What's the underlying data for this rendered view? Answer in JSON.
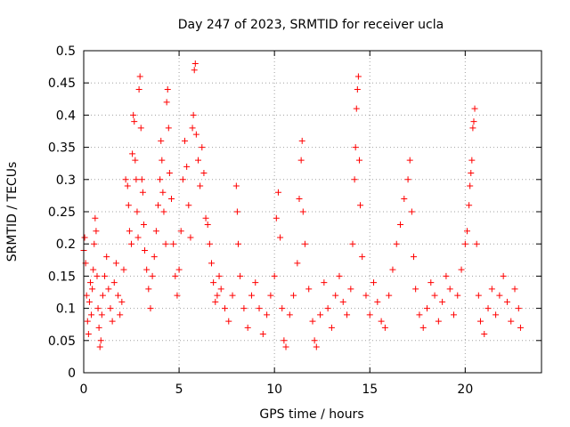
{
  "chart_data": {
    "type": "scatter",
    "title": "Day 247 of 2023, SRMTID for receiver ucla",
    "xlabel": "GPS time / hours",
    "ylabel": "SRMTID / TECUs",
    "xlim": [
      0,
      24
    ],
    "ylim": [
      0,
      0.5
    ],
    "xticks": [
      0,
      5,
      10,
      15,
      20
    ],
    "xtick_labels": [
      "0",
      "5",
      "10",
      "15",
      "20"
    ],
    "yticks": [
      0,
      0.05,
      0.1,
      0.15,
      0.2,
      0.25,
      0.3,
      0.35,
      0.4,
      0.45,
      0.5
    ],
    "ytick_labels": [
      "0",
      "0.05",
      "0.1",
      "0.15",
      "0.2",
      "0.25",
      "0.3",
      "0.35",
      "0.4",
      "0.45",
      "0.5"
    ],
    "grid": true,
    "marker": "+",
    "color": "#ff0000",
    "series": [
      {
        "name": "SRMTID",
        "points": [
          [
            0.0,
            0.19
          ],
          [
            0.05,
            0.21
          ],
          [
            0.1,
            0.17
          ],
          [
            0.15,
            0.12
          ],
          [
            0.2,
            0.08
          ],
          [
            0.25,
            0.06
          ],
          [
            0.3,
            0.11
          ],
          [
            0.35,
            0.14
          ],
          [
            0.4,
            0.09
          ],
          [
            0.45,
            0.13
          ],
          [
            0.5,
            0.16
          ],
          [
            0.55,
            0.2
          ],
          [
            0.6,
            0.24
          ],
          [
            0.65,
            0.22
          ],
          [
            0.7,
            0.15
          ],
          [
            0.75,
            0.1
          ],
          [
            0.8,
            0.07
          ],
          [
            0.85,
            0.04
          ],
          [
            0.9,
            0.05
          ],
          [
            0.95,
            0.09
          ],
          [
            1.0,
            0.12
          ],
          [
            1.1,
            0.15
          ],
          [
            1.2,
            0.18
          ],
          [
            1.3,
            0.13
          ],
          [
            1.4,
            0.1
          ],
          [
            1.5,
            0.08
          ],
          [
            1.6,
            0.14
          ],
          [
            1.7,
            0.17
          ],
          [
            1.8,
            0.12
          ],
          [
            1.9,
            0.09
          ],
          [
            2.0,
            0.11
          ],
          [
            2.1,
            0.16
          ],
          [
            2.2,
            0.3
          ],
          [
            2.3,
            0.29
          ],
          [
            2.35,
            0.26
          ],
          [
            2.4,
            0.22
          ],
          [
            2.5,
            0.2
          ],
          [
            2.55,
            0.34
          ],
          [
            2.6,
            0.4
          ],
          [
            2.65,
            0.39
          ],
          [
            2.7,
            0.33
          ],
          [
            2.75,
            0.3
          ],
          [
            2.8,
            0.25
          ],
          [
            2.85,
            0.21
          ],
          [
            2.9,
            0.44
          ],
          [
            2.95,
            0.46
          ],
          [
            3.0,
            0.38
          ],
          [
            3.05,
            0.3
          ],
          [
            3.1,
            0.28
          ],
          [
            3.15,
            0.23
          ],
          [
            3.2,
            0.19
          ],
          [
            3.3,
            0.16
          ],
          [
            3.4,
            0.13
          ],
          [
            3.5,
            0.1
          ],
          [
            3.6,
            0.15
          ],
          [
            3.7,
            0.18
          ],
          [
            3.8,
            0.22
          ],
          [
            3.9,
            0.26
          ],
          [
            4.0,
            0.3
          ],
          [
            4.05,
            0.36
          ],
          [
            4.1,
            0.33
          ],
          [
            4.15,
            0.28
          ],
          [
            4.2,
            0.25
          ],
          [
            4.3,
            0.2
          ],
          [
            4.35,
            0.42
          ],
          [
            4.4,
            0.44
          ],
          [
            4.45,
            0.38
          ],
          [
            4.5,
            0.31
          ],
          [
            4.6,
            0.27
          ],
          [
            4.7,
            0.2
          ],
          [
            4.8,
            0.15
          ],
          [
            4.9,
            0.12
          ],
          [
            5.0,
            0.16
          ],
          [
            5.1,
            0.22
          ],
          [
            5.2,
            0.3
          ],
          [
            5.3,
            0.36
          ],
          [
            5.4,
            0.32
          ],
          [
            5.5,
            0.26
          ],
          [
            5.6,
            0.21
          ],
          [
            5.7,
            0.38
          ],
          [
            5.75,
            0.4
          ],
          [
            5.8,
            0.47
          ],
          [
            5.85,
            0.48
          ],
          [
            5.9,
            0.37
          ],
          [
            6.0,
            0.33
          ],
          [
            6.1,
            0.29
          ],
          [
            6.2,
            0.35
          ],
          [
            6.3,
            0.31
          ],
          [
            6.4,
            0.24
          ],
          [
            6.5,
            0.23
          ],
          [
            6.6,
            0.2
          ],
          [
            6.7,
            0.17
          ],
          [
            6.8,
            0.14
          ],
          [
            6.9,
            0.11
          ],
          [
            7.0,
            0.12
          ],
          [
            7.1,
            0.15
          ],
          [
            7.2,
            0.13
          ],
          [
            7.4,
            0.1
          ],
          [
            7.6,
            0.08
          ],
          [
            7.8,
            0.12
          ],
          [
            8.0,
            0.29
          ],
          [
            8.05,
            0.25
          ],
          [
            8.1,
            0.2
          ],
          [
            8.2,
            0.15
          ],
          [
            8.4,
            0.1
          ],
          [
            8.6,
            0.07
          ],
          [
            8.8,
            0.12
          ],
          [
            9.0,
            0.14
          ],
          [
            9.2,
            0.1
          ],
          [
            9.4,
            0.06
          ],
          [
            9.6,
            0.09
          ],
          [
            9.8,
            0.12
          ],
          [
            10.0,
            0.15
          ],
          [
            10.1,
            0.24
          ],
          [
            10.2,
            0.28
          ],
          [
            10.3,
            0.21
          ],
          [
            10.4,
            0.1
          ],
          [
            10.5,
            0.05
          ],
          [
            10.6,
            0.04
          ],
          [
            10.8,
            0.09
          ],
          [
            11.0,
            0.12
          ],
          [
            11.2,
            0.17
          ],
          [
            11.3,
            0.27
          ],
          [
            11.4,
            0.33
          ],
          [
            11.45,
            0.36
          ],
          [
            11.5,
            0.25
          ],
          [
            11.6,
            0.2
          ],
          [
            11.8,
            0.13
          ],
          [
            12.0,
            0.08
          ],
          [
            12.1,
            0.05
          ],
          [
            12.2,
            0.04
          ],
          [
            12.4,
            0.09
          ],
          [
            12.6,
            0.14
          ],
          [
            12.8,
            0.1
          ],
          [
            13.0,
            0.07
          ],
          [
            13.2,
            0.12
          ],
          [
            13.4,
            0.15
          ],
          [
            13.6,
            0.11
          ],
          [
            13.8,
            0.09
          ],
          [
            14.0,
            0.13
          ],
          [
            14.1,
            0.2
          ],
          [
            14.2,
            0.3
          ],
          [
            14.25,
            0.35
          ],
          [
            14.3,
            0.41
          ],
          [
            14.35,
            0.44
          ],
          [
            14.4,
            0.46
          ],
          [
            14.45,
            0.33
          ],
          [
            14.5,
            0.26
          ],
          [
            14.6,
            0.18
          ],
          [
            14.8,
            0.12
          ],
          [
            15.0,
            0.09
          ],
          [
            15.2,
            0.14
          ],
          [
            15.4,
            0.11
          ],
          [
            15.6,
            0.08
          ],
          [
            15.8,
            0.07
          ],
          [
            16.0,
            0.12
          ],
          [
            16.2,
            0.16
          ],
          [
            16.4,
            0.2
          ],
          [
            16.6,
            0.23
          ],
          [
            16.8,
            0.27
          ],
          [
            17.0,
            0.3
          ],
          [
            17.1,
            0.33
          ],
          [
            17.2,
            0.25
          ],
          [
            17.3,
            0.18
          ],
          [
            17.4,
            0.13
          ],
          [
            17.6,
            0.09
          ],
          [
            17.8,
            0.07
          ],
          [
            18.0,
            0.1
          ],
          [
            18.2,
            0.14
          ],
          [
            18.4,
            0.12
          ],
          [
            18.6,
            0.08
          ],
          [
            18.8,
            0.11
          ],
          [
            19.0,
            0.15
          ],
          [
            19.2,
            0.13
          ],
          [
            19.4,
            0.09
          ],
          [
            19.6,
            0.12
          ],
          [
            19.8,
            0.16
          ],
          [
            20.0,
            0.2
          ],
          [
            20.1,
            0.22
          ],
          [
            20.2,
            0.26
          ],
          [
            20.25,
            0.29
          ],
          [
            20.3,
            0.31
          ],
          [
            20.35,
            0.33
          ],
          [
            20.4,
            0.38
          ],
          [
            20.45,
            0.39
          ],
          [
            20.5,
            0.41
          ],
          [
            20.6,
            0.2
          ],
          [
            20.7,
            0.12
          ],
          [
            20.8,
            0.08
          ],
          [
            21.0,
            0.06
          ],
          [
            21.2,
            0.1
          ],
          [
            21.4,
            0.13
          ],
          [
            21.6,
            0.09
          ],
          [
            21.8,
            0.12
          ],
          [
            22.0,
            0.15
          ],
          [
            22.2,
            0.11
          ],
          [
            22.4,
            0.08
          ],
          [
            22.6,
            0.13
          ],
          [
            22.8,
            0.1
          ],
          [
            22.9,
            0.07
          ]
        ]
      }
    ]
  }
}
